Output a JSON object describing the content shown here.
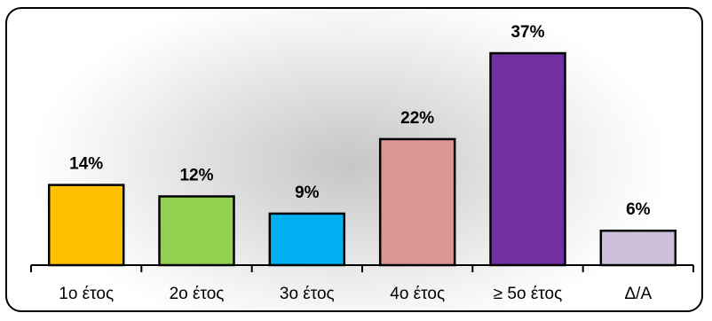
{
  "chart_data": {
    "type": "bar",
    "categories": [
      "1ο έτος",
      "2ο έτος",
      "3ο έτος",
      "4ο έτος",
      "≥ 5ο έτος",
      "Δ/Α"
    ],
    "values": [
      14,
      12,
      9,
      22,
      37,
      6
    ],
    "value_labels": [
      "14%",
      "12%",
      "9%",
      "22%",
      "37%",
      "6%"
    ],
    "colors": [
      "#ffc000",
      "#92d050",
      "#00b0f0",
      "#da9694",
      "#7030a0",
      "#ccc0da"
    ],
    "title": "",
    "xlabel": "",
    "ylabel": "",
    "ylim": [
      0,
      37
    ],
    "grid": false,
    "legend": "none"
  }
}
